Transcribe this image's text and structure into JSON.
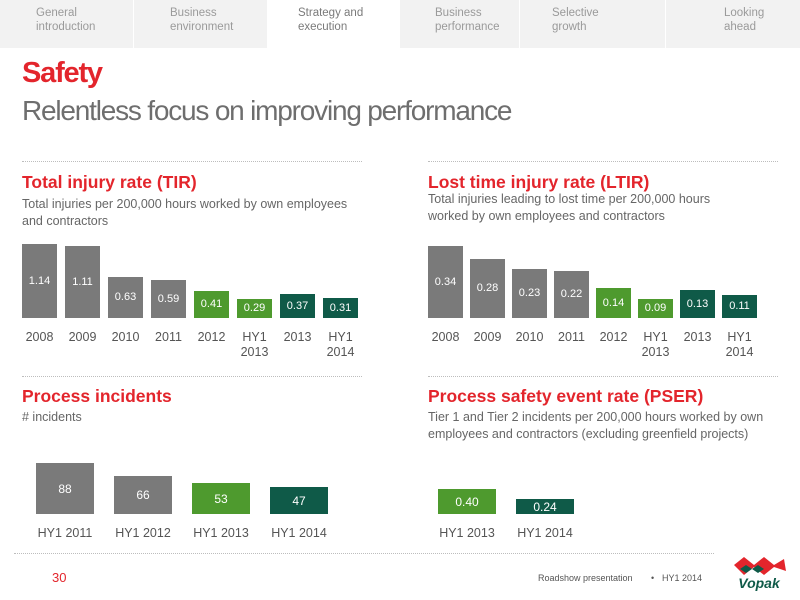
{
  "nav": {
    "tabs": [
      {
        "label": "General\nintroduction",
        "active": false
      },
      {
        "label": "Business\nenvironment",
        "active": false
      },
      {
        "label": "Strategy and\nexecution",
        "active": true
      },
      {
        "label": "Business\nperformance",
        "active": false
      },
      {
        "label": "Selective\ngrowth",
        "active": false
      },
      {
        "label": "Looking\nahead",
        "active": false
      }
    ]
  },
  "header": {
    "title": "Safety",
    "subtitle": "Relentless focus on improving performance"
  },
  "colors": {
    "grey": "#7a7a7a",
    "green": "#4e9a2e",
    "dark_green": "#0f5a48",
    "red": "#e3252c"
  },
  "panels": {
    "tir": {
      "title": "Total injury rate (TIR)",
      "description": "Total injuries per 200,000 hours worked by own employees and contractors"
    },
    "ltir": {
      "title": "Lost time injury rate (LTIR)",
      "description": "Total injuries leading to lost time per 200,000 hours worked by own employees and contractors"
    },
    "process": {
      "title": "Process incidents",
      "description": "# incidents"
    },
    "pser": {
      "title": "Process safety event rate (PSER)",
      "description": "Tier 1 and Tier 2 incidents per 200,000 hours worked by own employees and contractors (excluding greenfield projects)"
    }
  },
  "chart_data": [
    {
      "type": "bar",
      "title": "Total injury rate (TIR)",
      "categories": [
        "2008",
        "2009",
        "2010",
        "2011",
        "2012",
        "HY1 2013",
        "2013",
        "HY1 2014"
      ],
      "values": [
        1.14,
        1.11,
        0.63,
        0.59,
        0.41,
        0.29,
        0.37,
        0.31
      ],
      "labels": [
        "1.14",
        "1.11",
        "0.63",
        "0.59",
        "0.41",
        "0.29",
        "0.37",
        "0.31"
      ],
      "colors": [
        "grey",
        "grey",
        "grey",
        "grey",
        "green",
        "green",
        "dark_green",
        "dark_green"
      ]
    },
    {
      "type": "bar",
      "title": "Lost time injury rate (LTIR)",
      "categories": [
        "2008",
        "2009",
        "2010",
        "2011",
        "2012",
        "HY1 2013",
        "2013",
        "HY1 2014"
      ],
      "values": [
        0.34,
        0.28,
        0.23,
        0.22,
        0.14,
        0.09,
        0.13,
        0.11
      ],
      "labels": [
        "0.34",
        "0.28",
        "0.23",
        "0.22",
        "0.14",
        "0.09",
        "0.13",
        "0.11"
      ],
      "colors": [
        "grey",
        "grey",
        "grey",
        "grey",
        "green",
        "green",
        "dark_green",
        "dark_green"
      ]
    },
    {
      "type": "bar",
      "title": "Process incidents",
      "categories": [
        "HY1 2011",
        "HY1 2012",
        "HY1 2013",
        "HY1 2014"
      ],
      "values": [
        88,
        66,
        53,
        47
      ],
      "labels": [
        "88",
        "66",
        "53",
        "47"
      ],
      "colors": [
        "grey",
        "grey",
        "green",
        "dark_green"
      ]
    },
    {
      "type": "bar",
      "title": "Process safety event rate (PSER)",
      "categories": [
        "HY1 2013",
        "HY1 2014"
      ],
      "values": [
        0.4,
        0.24
      ],
      "labels": [
        "0.40",
        "0.24"
      ],
      "colors": [
        "green",
        "dark_green"
      ]
    }
  ],
  "footer": {
    "page_number": "30",
    "presentation": "Roadshow presentation",
    "bullet": "•",
    "date": "HY1 2014",
    "logo_text": "Vopak"
  }
}
